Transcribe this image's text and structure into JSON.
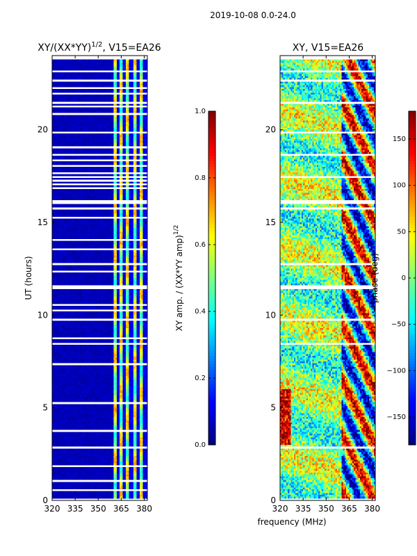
{
  "figure": {
    "suptitle": "2019-10-08 0.0-24.0",
    "xlabel": "frequency (MHz)"
  },
  "colors": {
    "masked": "#ffffff",
    "background": "#ffffff",
    "colormap": "jet"
  },
  "chart_data": [
    {
      "type": "heatmap",
      "title": "XY/(XX*YY)^1/2, V15=EA26",
      "title_main": "XY/(XX*YY)",
      "title_sup": "1/2",
      "title_tail": ", V15=EA26",
      "xlabel": "",
      "ylabel": "UT (hours)",
      "xlim": [
        320,
        382
      ],
      "ylim": [
        0,
        24
      ],
      "xticks": [
        320,
        335,
        350,
        365,
        380
      ],
      "yticks": [
        0,
        5,
        10,
        15,
        20
      ],
      "rows": 240,
      "cols": 62,
      "value_description": "normalized cross-correlation amplitude; ~0 below 360 MHz, bright (0.3-0.7) spectral stripes near 361-379 MHz",
      "bright_stripes_mhz": [
        361,
        365,
        369,
        374,
        378
      ],
      "masked_ut_bands": [
        [
          0.05,
          0.12
        ],
        [
          0.55,
          0.6
        ],
        [
          1.05,
          1.1
        ],
        [
          1.45,
          1.5
        ],
        [
          1.85,
          1.92
        ],
        [
          2.85,
          2.92
        ],
        [
          3.15,
          3.2
        ],
        [
          3.45,
          3.5
        ],
        [
          3.75,
          3.82
        ],
        [
          4.65,
          4.7
        ],
        [
          5.25,
          5.3
        ],
        [
          6.8,
          6.85
        ],
        [
          7.35,
          7.4
        ],
        [
          8.4,
          8.5
        ],
        [
          8.7,
          8.75
        ],
        [
          9.75,
          9.8
        ],
        [
          10.25,
          10.3
        ],
        [
          10.55,
          10.6
        ],
        [
          11.4,
          11.6
        ],
        [
          12.3,
          12.35
        ],
        [
          12.7,
          12.75
        ],
        [
          13.5,
          13.55
        ],
        [
          14.0,
          14.05
        ],
        [
          15.2,
          15.25
        ],
        [
          15.75,
          15.8
        ],
        [
          16.0,
          16.2
        ],
        [
          16.8,
          16.85
        ],
        [
          17.0,
          17.05
        ],
        [
          17.2,
          17.25
        ],
        [
          17.4,
          17.45
        ],
        [
          17.6,
          17.65
        ],
        [
          18.0,
          18.05
        ],
        [
          18.3,
          18.35
        ],
        [
          18.6,
          18.65
        ],
        [
          19.0,
          19.05
        ],
        [
          19.8,
          19.85
        ],
        [
          20.85,
          20.9
        ],
        [
          21.2,
          21.25
        ],
        [
          21.45,
          21.5
        ],
        [
          21.9,
          21.95
        ],
        [
          22.2,
          22.25
        ],
        [
          22.6,
          22.65
        ],
        [
          23.1,
          23.2
        ],
        [
          23.85,
          23.95
        ]
      ],
      "colorbar": {
        "label_main": "XY amp. / (XX*YY amp)",
        "label_sup": "1/2",
        "range": [
          0.0,
          1.0
        ],
        "ticks": [
          0.0,
          0.2,
          0.4,
          0.6,
          0.8,
          1.0
        ],
        "tick_labels": [
          "0.0",
          "0.2",
          "0.4",
          "0.6",
          "0.8",
          "1.0"
        ]
      }
    },
    {
      "type": "heatmap",
      "title": "XY, V15=EA26",
      "xlabel": "",
      "ylabel": "",
      "xlim": [
        320,
        382
      ],
      "ylim": [
        0,
        24
      ],
      "xticks": [
        320,
        335,
        350,
        365,
        380
      ],
      "yticks": [
        0,
        5,
        10,
        15,
        20
      ],
      "rows": 240,
      "cols": 62,
      "value_description": "cross-correlation phase in degrees, noisy across band with coherent structures at 360-380 MHz",
      "masked_ut_bands": [
        [
          0.05,
          0.12
        ],
        [
          1.45,
          1.5
        ],
        [
          2.85,
          2.92
        ],
        [
          3.45,
          3.5
        ],
        [
          6.8,
          6.85
        ],
        [
          8.4,
          8.5
        ],
        [
          9.75,
          9.8
        ],
        [
          11.4,
          11.6
        ],
        [
          12.7,
          12.75
        ],
        [
          15.75,
          15.8
        ],
        [
          16.0,
          16.2
        ],
        [
          17.4,
          17.45
        ],
        [
          18.6,
          18.65
        ],
        [
          19.8,
          19.85
        ],
        [
          21.45,
          21.5
        ],
        [
          22.6,
          22.65
        ],
        [
          23.1,
          23.2
        ],
        [
          23.85,
          23.95
        ]
      ],
      "colorbar": {
        "label": "phase (deg)",
        "range": [
          -180,
          180
        ],
        "ticks": [
          -150,
          -100,
          -50,
          0,
          50,
          100,
          150
        ],
        "tick_labels": [
          "−150",
          "−100",
          "−50",
          "0",
          "50",
          "100",
          "150"
        ]
      }
    }
  ]
}
